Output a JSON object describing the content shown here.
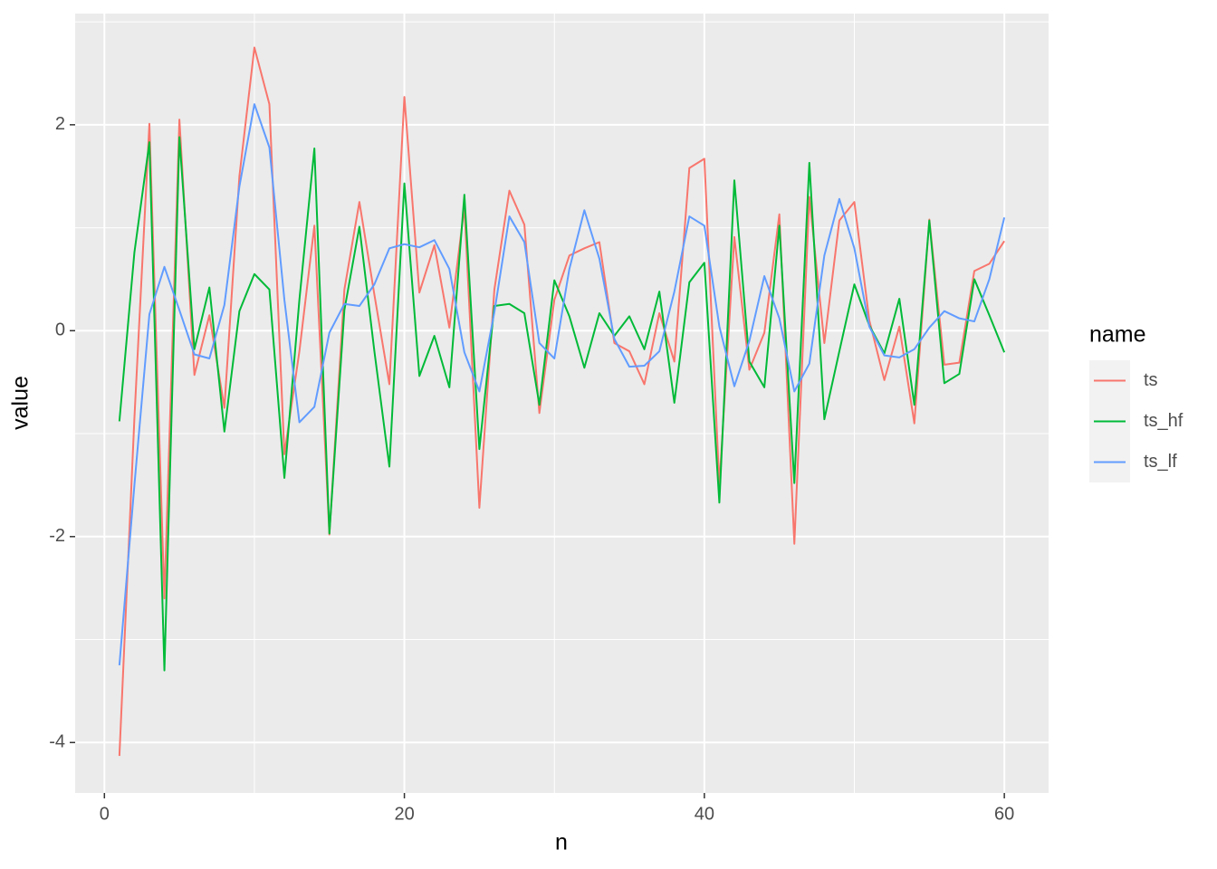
{
  "chart_data": {
    "type": "line",
    "x_label": "n",
    "y_label": "value",
    "legend_title": "name",
    "x": [
      1,
      2,
      3,
      4,
      5,
      6,
      7,
      8,
      9,
      10,
      11,
      12,
      13,
      14,
      15,
      16,
      17,
      18,
      19,
      20,
      21,
      22,
      23,
      24,
      25,
      26,
      27,
      28,
      29,
      30,
      31,
      32,
      33,
      34,
      35,
      36,
      37,
      38,
      39,
      40,
      41,
      42,
      43,
      44,
      45,
      46,
      47,
      48,
      49,
      50,
      51,
      52,
      53,
      54,
      55,
      56,
      57,
      58,
      59,
      60
    ],
    "series": [
      {
        "name": "ts",
        "color": "#F8766D",
        "values": [
          -4.13,
          -0.85,
          2.01,
          -2.6,
          2.05,
          -0.43,
          0.15,
          -0.75,
          1.5,
          2.75,
          2.2,
          -1.2,
          -0.2,
          1.02,
          -1.98,
          0.4,
          1.25,
          0.35,
          -0.52,
          2.27,
          0.37,
          0.83,
          0.03,
          1.2,
          -1.72,
          0.4,
          1.36,
          1.03,
          -0.8,
          0.3,
          0.73,
          0.8,
          0.86,
          -0.12,
          -0.2,
          -0.52,
          0.17,
          -0.3,
          1.58,
          1.67,
          -1.5,
          0.91,
          -0.38,
          -0.02,
          1.13,
          -2.07,
          1.3,
          -0.12,
          1.07,
          1.25,
          0.1,
          -0.48,
          0.04,
          -0.9,
          1.08,
          -0.33,
          -0.31,
          0.58,
          0.65,
          0.87
        ]
      },
      {
        "name": "ts_hf",
        "color": "#00BA38",
        "values": [
          -0.88,
          0.76,
          1.83,
          -3.3,
          1.88,
          -0.18,
          0.42,
          -0.98,
          0.19,
          0.55,
          0.4,
          -1.43,
          0.3,
          1.77,
          -1.97,
          0.2,
          1.01,
          -0.2,
          -1.32,
          1.43,
          -0.44,
          -0.05,
          -0.55,
          1.32,
          -1.15,
          0.24,
          0.26,
          0.17,
          -0.72,
          0.49,
          0.14,
          -0.36,
          0.17,
          -0.05,
          0.14,
          -0.18,
          0.38,
          -0.7,
          0.47,
          0.66,
          -1.67,
          1.46,
          -0.3,
          -0.55,
          1.02,
          -1.48,
          1.63,
          -0.86,
          -0.2,
          0.45,
          0.05,
          -0.22,
          0.31,
          -0.72,
          1.07,
          -0.51,
          -0.42,
          0.5,
          0.15,
          -0.21
        ]
      },
      {
        "name": "ts_lf",
        "color": "#619CFF",
        "values": [
          -3.25,
          -1.5,
          0.16,
          0.62,
          0.2,
          -0.23,
          -0.27,
          0.25,
          1.4,
          2.2,
          1.78,
          0.3,
          -0.89,
          -0.74,
          -0.02,
          0.26,
          0.24,
          0.45,
          0.8,
          0.84,
          0.81,
          0.88,
          0.6,
          -0.21,
          -0.59,
          0.18,
          1.11,
          0.86,
          -0.12,
          -0.27,
          0.6,
          1.17,
          0.7,
          -0.08,
          -0.35,
          -0.34,
          -0.2,
          0.38,
          1.11,
          1.02,
          0.04,
          -0.54,
          -0.1,
          0.53,
          0.12,
          -0.59,
          -0.32,
          0.73,
          1.28,
          0.8,
          0.04,
          -0.24,
          -0.26,
          -0.18,
          0.03,
          0.19,
          0.12,
          0.09,
          0.5,
          1.1
        ]
      }
    ],
    "xlim": [
      -1.95,
      62.95
    ],
    "ylim": [
      -4.49,
      3.08
    ],
    "xticks": [
      0,
      20,
      40,
      60
    ],
    "yticks": [
      -4,
      -2,
      0,
      2
    ],
    "x_minor_grid": [
      10,
      30,
      50
    ],
    "y_minor_grid": [
      -3,
      -1,
      1,
      3
    ],
    "grid": true
  }
}
